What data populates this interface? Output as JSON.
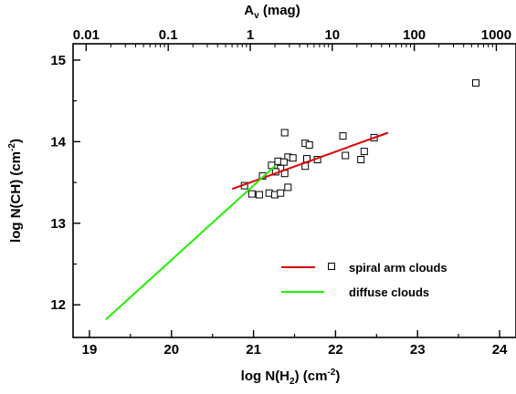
{
  "chart_data": {
    "type": "scatter",
    "title": "",
    "xlabel": {
      "prefix": "log N(H",
      "sub": "2",
      "mid": ") (cm",
      "sup": "-2",
      "suffix": ")"
    },
    "ylabel": {
      "prefix": "log N(CH) (cm",
      "sup": "-2",
      "suffix": ")"
    },
    "top_xlabel": {
      "base": "A",
      "sub": "v",
      "suffix": " (mag)"
    },
    "xlim": [
      18.8,
      24.2
    ],
    "ylim": [
      11.6,
      15.2
    ],
    "x_ticks": [
      "19",
      "20",
      "21",
      "22",
      "23",
      "24"
    ],
    "y_ticks": [
      "12",
      "13",
      "14",
      "15"
    ],
    "top_x_ticks": [
      {
        "label": "0.01",
        "log_nh2": 18.96
      },
      {
        "label": "0.1",
        "log_nh2": 19.96
      },
      {
        "label": "1",
        "log_nh2": 20.96
      },
      {
        "label": "10",
        "log_nh2": 21.96
      },
      {
        "label": "100",
        "log_nh2": 22.96
      },
      {
        "label": "1000",
        "log_nh2": 23.96
      }
    ],
    "grid": false,
    "legend": {
      "placement": "lower-right",
      "entries": [
        "spiral arm clouds",
        "diffuse clouds"
      ]
    },
    "series": [
      {
        "name": "spiral arm clouds",
        "kind": "scatter",
        "marker": "open-square",
        "color": "#000000",
        "points": [
          [
            23.71,
            14.72
          ],
          [
            21.38,
            14.11
          ],
          [
            22.09,
            14.07
          ],
          [
            22.47,
            14.05
          ],
          [
            21.63,
            13.98
          ],
          [
            21.68,
            13.96
          ],
          [
            22.35,
            13.88
          ],
          [
            22.31,
            13.78
          ],
          [
            21.42,
            13.81
          ],
          [
            21.48,
            13.8
          ],
          [
            21.65,
            13.79
          ],
          [
            21.78,
            13.78
          ],
          [
            22.12,
            13.83
          ],
          [
            21.3,
            13.76
          ],
          [
            21.37,
            13.75
          ],
          [
            21.22,
            13.71
          ],
          [
            21.63,
            13.7
          ],
          [
            21.33,
            13.67
          ],
          [
            21.27,
            13.63
          ],
          [
            21.38,
            13.61
          ],
          [
            21.11,
            13.58
          ],
          [
            20.89,
            13.46
          ],
          [
            21.42,
            13.44
          ],
          [
            20.98,
            13.36
          ],
          [
            21.07,
            13.35
          ],
          [
            21.19,
            13.37
          ],
          [
            21.26,
            13.35
          ],
          [
            21.33,
            13.37
          ]
        ]
      },
      {
        "name": "spiral arm clouds fit",
        "kind": "line",
        "color": "#dd0000",
        "points": [
          [
            20.74,
            13.42
          ],
          [
            22.64,
            14.11
          ]
        ]
      },
      {
        "name": "diffuse clouds",
        "kind": "line",
        "color": "#22ee00",
        "points": [
          [
            19.2,
            11.82
          ],
          [
            21.26,
            13.7
          ]
        ]
      }
    ]
  }
}
